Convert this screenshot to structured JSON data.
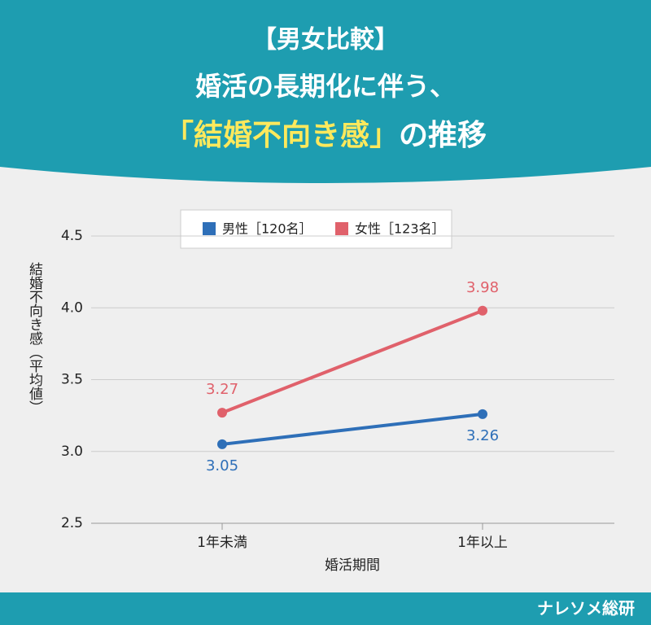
{
  "header": {
    "lines": [
      "【男女比較】",
      "婚活の長期化に伴う、"
    ],
    "highlight": "「結婚不向き感」",
    "tail": "の推移"
  },
  "chart_data": {
    "type": "line",
    "categories": [
      "1年未満",
      "1年以上"
    ],
    "series": [
      {
        "name": "男性［120名］",
        "color": "#2e6fb8",
        "values": [
          3.05,
          3.26
        ]
      },
      {
        "name": "女性［123名］",
        "color": "#e0616b",
        "values": [
          3.27,
          3.98
        ]
      }
    ],
    "ylim": [
      2.5,
      4.5
    ],
    "yticks": [
      2.5,
      {
        "value": 3,
        "label": "3.0"
      },
      3.5,
      {
        "value": 4,
        "label": "4.0"
      },
      4.5
    ],
    "ylabel": "結婚不向き感（平均値）",
    "xlabel": "婚活期間",
    "grid": true
  },
  "footer": {
    "brand": "ナレソメ総研"
  }
}
